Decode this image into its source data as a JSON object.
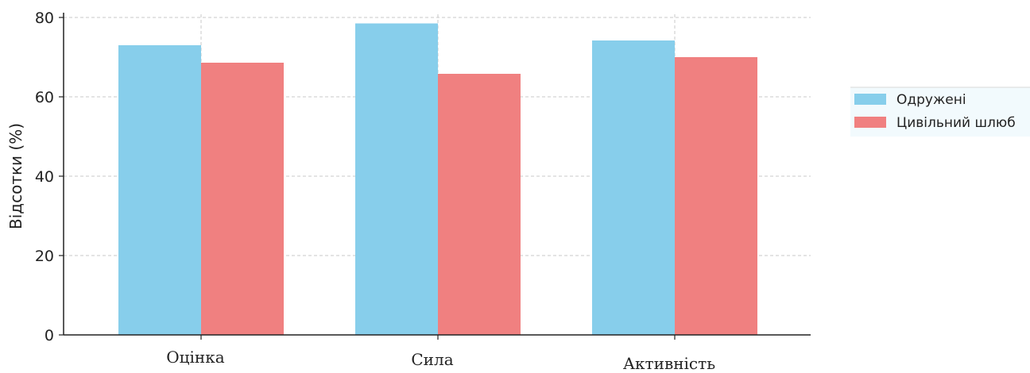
{
  "chart_data": {
    "type": "bar",
    "categories": [
      "Оцінка",
      "Сила",
      "Активність"
    ],
    "series": [
      {
        "name": "Одружені",
        "values": [
          73,
          78.5,
          74.2
        ],
        "color": "#87CEEB"
      },
      {
        "name": "Цивільний шлюб",
        "values": [
          68.6,
          65.8,
          70
        ],
        "color": "#F08080"
      }
    ],
    "xlabel": "",
    "ylabel": "Відсотки (%)",
    "ylim": [
      0,
      80
    ],
    "yticks": [
      "0",
      "20",
      "40",
      "60",
      "80"
    ],
    "grid": true,
    "legend_position": "right"
  }
}
